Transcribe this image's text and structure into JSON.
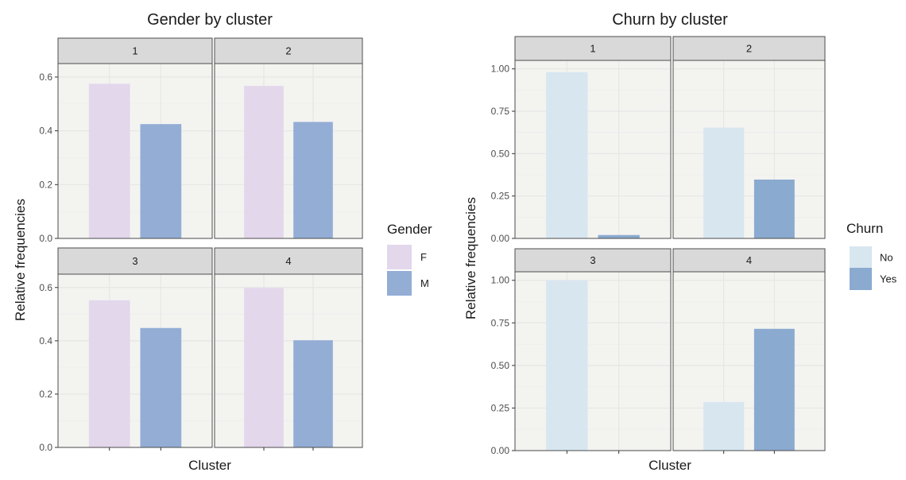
{
  "chart_data": [
    {
      "type": "bar",
      "title": "Gender by cluster",
      "xlabel": "Cluster",
      "ylabel": "Relative frequencies",
      "ylim": [
        0,
        0.65
      ],
      "yticks": [
        "0.0",
        "0.2",
        "0.4",
        "0.6"
      ],
      "ytick_values": [
        0,
        0.2,
        0.4,
        0.6
      ],
      "facet": "wrap 2x2 by cluster",
      "grid": true,
      "legend_position": "right",
      "legend": {
        "title": "Gender",
        "entries": [
          {
            "label": "F",
            "color": "#e3d7ec"
          },
          {
            "label": "M",
            "color": "#93add5"
          }
        ]
      },
      "panels": [
        {
          "label": "1",
          "values": [
            0.575,
            0.425
          ]
        },
        {
          "label": "2",
          "values": [
            0.567,
            0.433
          ]
        },
        {
          "label": "3",
          "values": [
            0.552,
            0.448
          ]
        },
        {
          "label": "4",
          "values": [
            0.598,
            0.402
          ]
        }
      ]
    },
    {
      "type": "bar",
      "title": "Churn by cluster",
      "xlabel": "Cluster",
      "ylabel": "Relative frequencies",
      "ylim": [
        0,
        1.05
      ],
      "yticks": [
        "0.00",
        "0.25",
        "0.50",
        "0.75",
        "1.00"
      ],
      "ytick_values": [
        0,
        0.25,
        0.5,
        0.75,
        1.0
      ],
      "facet": "wrap 2x2 by cluster",
      "grid": true,
      "legend_position": "right",
      "legend": {
        "title": "Churn",
        "entries": [
          {
            "label": "No",
            "color": "#d8e6f0"
          },
          {
            "label": "Yes",
            "color": "#8aaad0"
          }
        ]
      },
      "panels": [
        {
          "label": "1",
          "values": [
            0.98,
            0.02
          ]
        },
        {
          "label": "2",
          "values": [
            0.653,
            0.347
          ]
        },
        {
          "label": "3",
          "values": [
            1.0,
            0.0
          ]
        },
        {
          "label": "4",
          "values": [
            0.285,
            0.715
          ]
        }
      ]
    }
  ]
}
